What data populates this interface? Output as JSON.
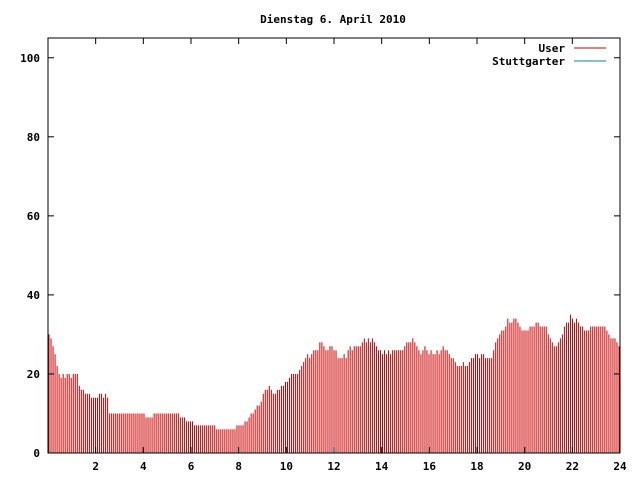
{
  "chart_data": {
    "type": "bar",
    "title": "Dienstag 6. April 2010",
    "xlabel": "",
    "ylabel": "",
    "xlim": [
      0,
      24
    ],
    "ylim": [
      0,
      105
    ],
    "xticks": [
      2,
      4,
      6,
      8,
      10,
      12,
      14,
      16,
      18,
      20,
      22,
      24
    ],
    "yticks": [
      0,
      20,
      40,
      60,
      80,
      100
    ],
    "grid": false,
    "legend_position": "top-right",
    "series": [
      {
        "name": "User",
        "color": "#cc0000",
        "style": "impulses",
        "sample_interval_hours": 0.0833,
        "values": [
          30,
          29,
          27,
          25,
          22,
          20,
          19,
          20,
          19,
          20,
          20,
          19,
          20,
          20,
          20,
          17,
          16,
          16,
          15,
          15,
          15,
          14,
          14,
          14,
          14,
          15,
          15,
          14,
          15,
          14,
          10,
          10,
          10,
          10,
          10,
          10,
          10,
          10,
          10,
          10,
          10,
          10,
          10,
          10,
          10,
          10,
          10,
          10,
          9,
          9,
          9,
          9,
          10,
          10,
          10,
          10,
          10,
          10,
          10,
          10,
          10,
          10,
          10,
          10,
          10,
          9,
          9,
          9,
          8,
          8,
          8,
          8,
          7,
          7,
          7,
          7,
          7,
          7,
          7,
          7,
          7,
          7,
          7,
          6,
          6,
          6,
          6,
          6,
          6,
          6,
          6,
          6,
          6,
          7,
          7,
          7,
          7,
          8,
          8,
          9,
          10,
          10,
          11,
          12,
          12,
          13,
          15,
          16,
          16,
          17,
          16,
          15,
          15,
          16,
          16,
          17,
          17,
          18,
          18,
          19,
          20,
          20,
          20,
          20,
          21,
          22,
          23,
          24,
          25,
          24,
          25,
          26,
          26,
          26,
          28,
          28,
          27,
          26,
          26,
          27,
          27,
          26,
          26,
          24,
          24,
          24,
          25,
          24,
          26,
          27,
          26,
          27,
          27,
          27,
          27,
          28,
          29,
          28,
          29,
          28,
          29,
          28,
          27,
          26,
          26,
          25,
          26,
          25,
          26,
          25,
          26,
          26,
          26,
          26,
          26,
          26,
          27,
          28,
          28,
          28,
          29,
          28,
          27,
          26,
          25,
          26,
          27,
          26,
          25,
          26,
          25,
          25,
          26,
          25,
          26,
          27,
          26,
          26,
          25,
          24,
          24,
          23,
          22,
          22,
          22,
          23,
          22,
          22,
          23,
          24,
          24,
          25,
          25,
          24,
          25,
          25,
          24,
          24,
          24,
          24,
          26,
          28,
          29,
          30,
          31,
          31,
          32,
          34,
          33,
          33,
          34,
          34,
          33,
          32,
          31,
          31,
          31,
          31,
          32,
          32,
          32,
          33,
          33,
          32,
          32,
          32,
          32,
          30,
          29,
          28,
          27,
          27,
          28,
          29,
          30,
          32,
          33,
          33,
          35,
          34,
          33,
          34,
          33,
          32,
          32,
          31,
          31,
          31,
          32,
          32,
          32,
          32,
          32,
          32,
          32,
          32,
          31,
          30,
          29,
          29,
          29,
          28,
          27
        ]
      },
      {
        "name": "Stuttgarter",
        "color": "#008b8b",
        "style": "impulses",
        "values": []
      }
    ]
  }
}
